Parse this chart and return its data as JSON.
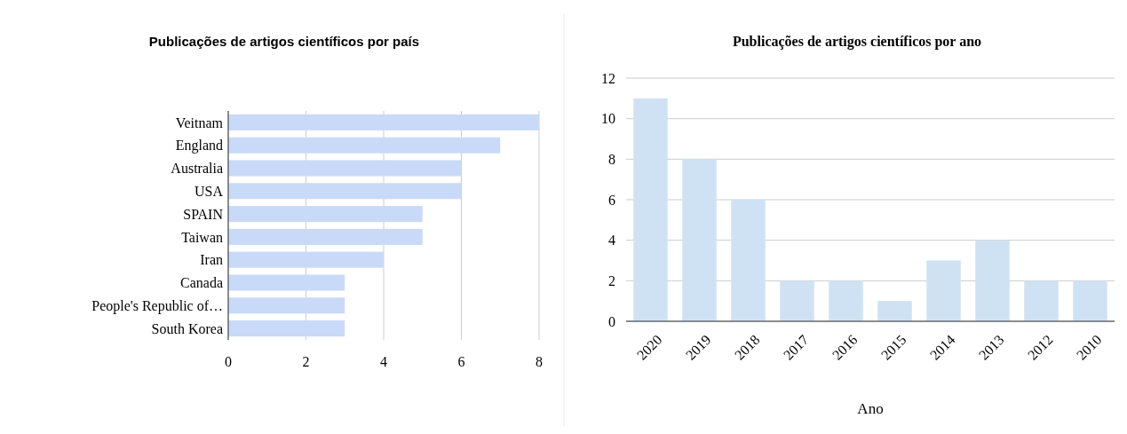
{
  "chart_data": [
    {
      "type": "bar",
      "orientation": "horizontal",
      "title": "Publicações de artigos científicos por país",
      "categories": [
        "Veitnam",
        "England",
        "Australia",
        "USA",
        "SPAIN",
        "Taiwan",
        "Iran",
        "Canada",
        "People's Republic of…",
        "South Korea"
      ],
      "values": [
        8,
        7,
        6,
        6,
        5,
        5,
        4,
        3,
        3,
        3
      ],
      "color": "#c9daf8",
      "xlim": [
        0,
        8
      ],
      "xticks": [
        0,
        2,
        4,
        6,
        8
      ],
      "grid": "x"
    },
    {
      "type": "bar",
      "title": "Publicações de artigos científicos por ano",
      "xlabel": "Ano",
      "categories": [
        "2020",
        "2019",
        "2018",
        "2017",
        "2016",
        "2015",
        "2014",
        "2013",
        "2012",
        "2010"
      ],
      "values": [
        11,
        8,
        6,
        2,
        2,
        1,
        3,
        4,
        2,
        2
      ],
      "color": "#cfe2f3",
      "ylim": [
        0,
        12
      ],
      "yticks": [
        0,
        2,
        4,
        6,
        8,
        10,
        12
      ],
      "grid": "y"
    }
  ]
}
